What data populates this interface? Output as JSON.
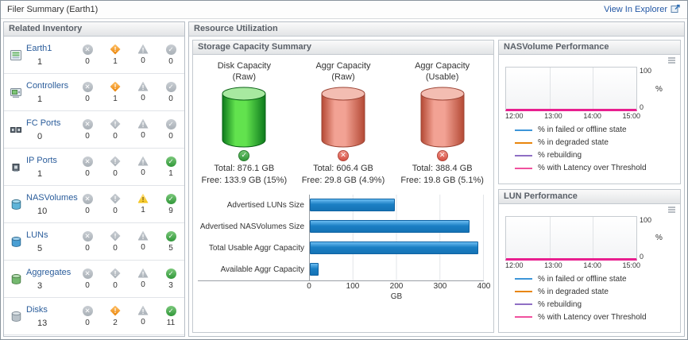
{
  "colors": {
    "accent_blue": "#1b7fc4",
    "magenta": "#e81f8f",
    "link_blue": "#2257a5",
    "cylinders": {
      "green": {
        "edge": "#0d7a1c",
        "mid": "#62e24e",
        "top": "#a8e9a0",
        "stroke": "#0a6316"
      },
      "red": {
        "edge": "#b44934",
        "mid": "#f2a294",
        "top": "#f3bdb2",
        "stroke": "#9c4536"
      }
    }
  },
  "header": {
    "title": "Filer Summary (Earth1)",
    "link": "View In Explorer"
  },
  "inventory": {
    "title": "Related Inventory",
    "items": [
      {
        "name": "Earth1",
        "icon": "filer",
        "count": "1",
        "statuses": [
          "0",
          "1",
          "0",
          "0"
        ]
      },
      {
        "name": "Controllers",
        "icon": "controller",
        "count": "1",
        "statuses": [
          "0",
          "1",
          "0",
          "0"
        ]
      },
      {
        "name": "FC Ports",
        "icon": "fc-port",
        "count": "0",
        "statuses": [
          "0",
          "0",
          "0",
          "0"
        ]
      },
      {
        "name": "IP Ports",
        "icon": "ip-port",
        "count": "1",
        "statuses": [
          "0",
          "0",
          "0",
          "1"
        ]
      },
      {
        "name": "NASVolumes",
        "icon": "nas-volume",
        "count": "10",
        "statuses": [
          "0",
          "0",
          "1",
          "9"
        ]
      },
      {
        "name": "LUNs",
        "icon": "lun",
        "count": "5",
        "statuses": [
          "0",
          "0",
          "0",
          "5"
        ]
      },
      {
        "name": "Aggregates",
        "icon": "aggregate",
        "count": "3",
        "statuses": [
          "0",
          "0",
          "0",
          "3"
        ]
      },
      {
        "name": "Disks",
        "icon": "disk",
        "count": "13",
        "statuses": [
          "0",
          "2",
          "0",
          "11"
        ]
      }
    ]
  },
  "resource": {
    "title": "Resource Utilization",
    "storage": {
      "title": "Storage Capacity Summary",
      "gauges": [
        {
          "label_line1": "Disk Capacity",
          "label_line2": "(Raw)",
          "color": "green",
          "status": "ok",
          "total": "Total: 876.1 GB",
          "free": "Free: 133.9 GB (15%)"
        },
        {
          "label_line1": "Aggr Capacity",
          "label_line2": "(Raw)",
          "color": "red",
          "status": "error",
          "total": "Total: 606.4 GB",
          "free": "Free: 29.8 GB (4.9%)"
        },
        {
          "label_line1": "Aggr Capacity",
          "label_line2": "(Usable)",
          "color": "red",
          "status": "error",
          "total": "Total: 388.4 GB",
          "free": "Free: 19.8 GB (5.1%)"
        }
      ],
      "bar_chart": {
        "categories": [
          "Advertised LUNs Size",
          "Advertised NASVolumes Size",
          "Total Usable Aggr Capacity",
          "Available Aggr Capacity"
        ],
        "values": [
          195,
          368,
          388,
          20
        ],
        "xlim": [
          0,
          400
        ],
        "ticks": [
          "0",
          "100",
          "200",
          "300",
          "400"
        ],
        "xlabel": "GB"
      }
    },
    "performance": [
      {
        "title": "NASVolume Performance",
        "y_ticks": [
          "100",
          "0"
        ],
        "y_label": "%",
        "x_ticks": [
          "12:00",
          "13:00",
          "14:00",
          "15:00"
        ],
        "legend": [
          {
            "color": "#3d95d8",
            "label": "% in failed or offline state"
          },
          {
            "color": "#e8860d",
            "label": "% in degraded state"
          },
          {
            "color": "#8f6fc4",
            "label": "% rebuilding"
          },
          {
            "color": "#f0519e",
            "label": "% with Latency over Threshold"
          }
        ]
      },
      {
        "title": "LUN Performance",
        "y_ticks": [
          "100",
          "0"
        ],
        "y_label": "%",
        "x_ticks": [
          "12:00",
          "13:00",
          "14:00",
          "15:00"
        ],
        "legend": [
          {
            "color": "#3d95d8",
            "label": "% in failed or offline state"
          },
          {
            "color": "#e8860d",
            "label": "% in degraded state"
          },
          {
            "color": "#8f6fc4",
            "label": "% rebuilding"
          },
          {
            "color": "#f0519e",
            "label": "% with Latency over Threshold"
          }
        ]
      }
    ]
  },
  "chart_data": [
    {
      "type": "bar",
      "orientation": "horizontal",
      "title": "Storage Capacity Summary",
      "categories": [
        "Advertised LUNs Size",
        "Advertised NASVolumes Size",
        "Total Usable Aggr Capacity",
        "Available Aggr Capacity"
      ],
      "values": [
        195,
        368,
        388,
        20
      ],
      "xlabel": "GB",
      "xlim": [
        0,
        400
      ],
      "xticks": [
        0,
        100,
        200,
        300,
        400
      ],
      "grid": true
    },
    {
      "type": "gauge",
      "title": "Storage Capacity Summary",
      "gauges": [
        {
          "name": "Disk Capacity (Raw)",
          "total_gb": 876.1,
          "free_gb": 133.9,
          "free_pct": 15,
          "state": "ok"
        },
        {
          "name": "Aggr Capacity (Raw)",
          "total_gb": 606.4,
          "free_gb": 29.8,
          "free_pct": 4.9,
          "state": "error"
        },
        {
          "name": "Aggr Capacity (Usable)",
          "total_gb": 388.4,
          "free_gb": 19.8,
          "free_pct": 5.1,
          "state": "error"
        }
      ]
    },
    {
      "type": "line",
      "title": "NASVolume Performance",
      "x": [
        "12:00",
        "13:00",
        "14:00",
        "15:00"
      ],
      "ylabel": "%",
      "ylim": [
        0,
        100
      ],
      "legend_position": "bottom",
      "grid": true,
      "series": [
        {
          "name": "% in failed or offline state",
          "color": "#3d95d8",
          "values": [
            0,
            0,
            0,
            0
          ]
        },
        {
          "name": "% in degraded state",
          "color": "#e8860d",
          "values": [
            0,
            0,
            0,
            0
          ]
        },
        {
          "name": "% rebuilding",
          "color": "#8f6fc4",
          "values": [
            0,
            0,
            0,
            0
          ]
        },
        {
          "name": "% with Latency over Threshold",
          "color": "#f0519e",
          "values": [
            0,
            0,
            0,
            0
          ]
        }
      ]
    },
    {
      "type": "line",
      "title": "LUN Performance",
      "x": [
        "12:00",
        "13:00",
        "14:00",
        "15:00"
      ],
      "ylabel": "%",
      "ylim": [
        0,
        100
      ],
      "legend_position": "bottom",
      "grid": true,
      "series": [
        {
          "name": "% in failed or offline state",
          "color": "#3d95d8",
          "values": [
            0,
            0,
            0,
            0
          ]
        },
        {
          "name": "% in degraded state",
          "color": "#e8860d",
          "values": [
            0,
            0,
            0,
            0
          ]
        },
        {
          "name": "% rebuilding",
          "color": "#8f6fc4",
          "values": [
            0,
            0,
            0,
            0
          ]
        },
        {
          "name": "% with Latency over Threshold",
          "color": "#f0519e",
          "values": [
            0,
            0,
            0,
            0
          ]
        }
      ]
    }
  ]
}
